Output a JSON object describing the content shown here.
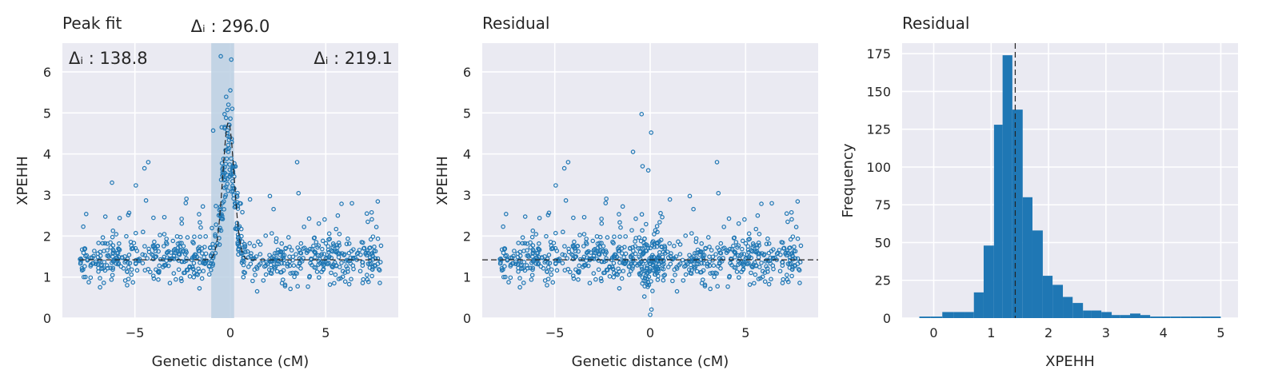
{
  "figure": {
    "background": "#ffffff",
    "axes_face": "#eaeaf2",
    "grid_color": "#ffffff",
    "point_color": "#1f77b4",
    "bar_color": "#1f77b4",
    "band_color": "#bcd0e3"
  },
  "chart_data": [
    {
      "id": "peak",
      "type": "scatter",
      "title": "Peak fit",
      "xlabel": "Genetic distance (cM)",
      "ylabel": "XPEHH",
      "xlim": [
        -8.8,
        8.8
      ],
      "ylim": [
        0,
        6.7
      ],
      "xticks": [
        -5,
        0,
        5
      ],
      "xtick_labels": [
        "−5",
        "0",
        "5"
      ],
      "yticks": [
        0,
        1,
        2,
        3,
        4,
        5,
        6
      ],
      "ytick_labels": [
        "0",
        "1",
        "2",
        "3",
        "4",
        "5",
        "6"
      ],
      "grid": true,
      "baseline": 1.42,
      "peak": {
        "center": -0.1,
        "height": 3.35,
        "width": 0.3
      },
      "highlight_band": [
        -1.0,
        0.2
      ],
      "annotations": {
        "left": "Δᵢ : 138.8",
        "center": "Δᵢ : 296.0",
        "right": "Δᵢ : 219.1"
      },
      "notable_points": [
        {
          "x": -0.5,
          "y": 6.38
        },
        {
          "x": 0.05,
          "y": 6.3
        },
        {
          "x": 0.0,
          "y": 5.55
        },
        {
          "x": -0.1,
          "y": 5.2
        },
        {
          "x": 0.1,
          "y": 5.1
        },
        {
          "x": -0.3,
          "y": 4.97
        },
        {
          "x": -0.9,
          "y": 4.57
        },
        {
          "x": -0.45,
          "y": 4.65
        },
        {
          "x": -4.3,
          "y": 3.8
        },
        {
          "x": 3.5,
          "y": 3.8
        },
        {
          "x": -4.5,
          "y": 3.65
        },
        {
          "x": -6.2,
          "y": 3.3
        }
      ]
    },
    {
      "id": "residual_scatter",
      "type": "scatter",
      "title": "Residual",
      "xlabel": "Genetic distance (cM)",
      "ylabel": "XPEHH",
      "xlim": [
        -8.8,
        8.8
      ],
      "ylim": [
        0,
        6.7
      ],
      "xticks": [
        -5,
        0,
        5
      ],
      "xtick_labels": [
        "−5",
        "0",
        "5"
      ],
      "yticks": [
        0,
        1,
        2,
        3,
        4,
        5,
        6
      ],
      "ytick_labels": [
        "0",
        "1",
        "2",
        "3",
        "4",
        "5",
        "6"
      ],
      "grid": true,
      "reference_line": 1.42,
      "notable_points": [
        {
          "x": -0.45,
          "y": 4.97
        },
        {
          "x": 0.05,
          "y": 4.52
        },
        {
          "x": -0.9,
          "y": 4.05
        },
        {
          "x": -4.3,
          "y": 3.8
        },
        {
          "x": 3.5,
          "y": 3.8
        },
        {
          "x": -0.4,
          "y": 3.7
        },
        {
          "x": -0.1,
          "y": 3.6
        },
        {
          "x": -4.5,
          "y": 3.65
        },
        {
          "x": 0.0,
          "y": 0.08
        }
      ]
    },
    {
      "id": "residual_hist",
      "type": "bar",
      "title": "Residual",
      "xlabel": "XPEHH",
      "ylabel": "Frequency",
      "xlim": [
        -0.55,
        5.3
      ],
      "ylim": [
        0,
        182
      ],
      "xticks": [
        0,
        1,
        2,
        3,
        4,
        5
      ],
      "xtick_labels": [
        "0",
        "1",
        "2",
        "3",
        "4",
        "5"
      ],
      "yticks": [
        0,
        25,
        50,
        75,
        100,
        125,
        150,
        175
      ],
      "ytick_labels": [
        "0",
        "25",
        "50",
        "75",
        "100",
        "125",
        "150",
        "175"
      ],
      "grid": true,
      "reference_line": 1.42,
      "bin_edges": [
        -0.25,
        -0.05,
        0.15,
        0.35,
        0.55,
        0.7,
        0.87,
        1.05,
        1.2,
        1.37,
        1.55,
        1.72,
        1.9,
        2.07,
        2.25,
        2.42,
        2.6,
        2.75,
        2.92,
        3.1,
        3.25,
        3.42,
        3.6,
        3.77,
        3.95,
        4.12,
        4.3,
        4.47,
        4.65,
        4.82,
        5.0
      ],
      "counts": [
        1,
        1,
        4,
        4,
        4,
        17,
        48,
        128,
        174,
        138,
        80,
        58,
        28,
        22,
        14,
        10,
        5,
        5,
        4,
        2,
        2,
        3,
        2,
        1,
        1,
        1,
        1,
        1,
        1,
        1
      ]
    }
  ]
}
